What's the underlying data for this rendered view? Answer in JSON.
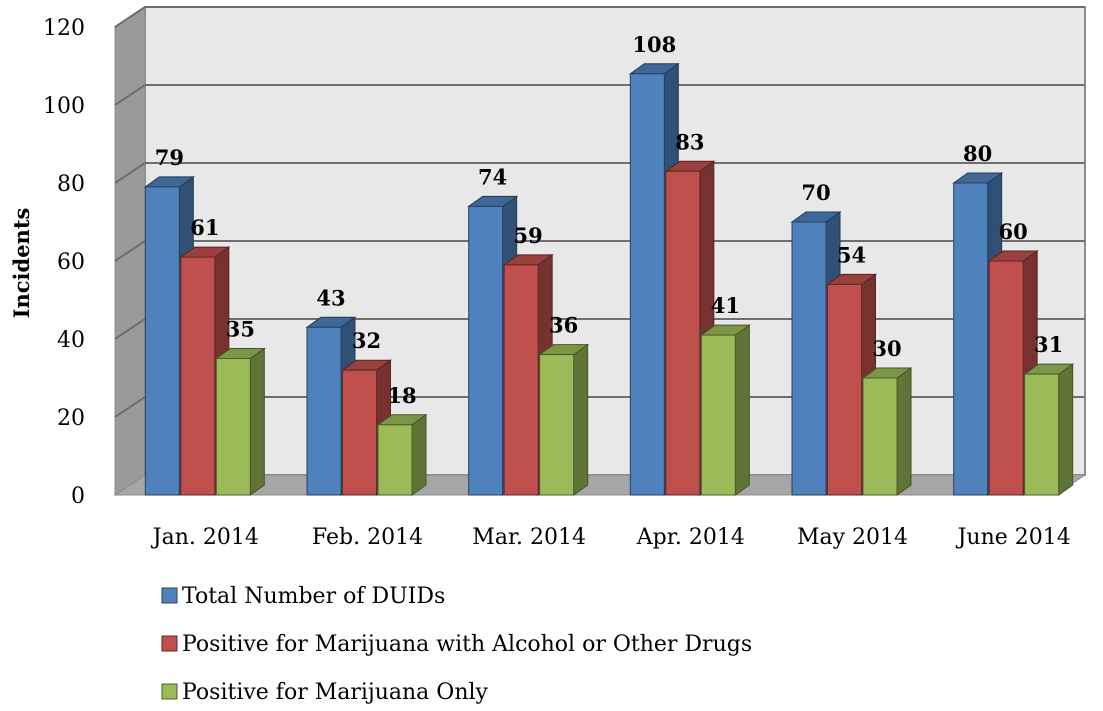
{
  "chart_data": {
    "type": "bar",
    "title": "",
    "xlabel": "",
    "ylabel": "Incidents",
    "ylim": [
      0,
      120
    ],
    "yticks": [
      0,
      20,
      40,
      60,
      80,
      100,
      120
    ],
    "grid": true,
    "legend_position": "bottom-left",
    "three_d": true,
    "categories": [
      "Jan. 2014",
      "Feb. 2014",
      "Mar. 2014",
      "Apr. 2014",
      "May 2014",
      "June 2014"
    ],
    "series": [
      {
        "name": "Total Number of DUIDs",
        "color": "#4F81BD",
        "values": [
          79,
          43,
          74,
          108,
          70,
          80
        ]
      },
      {
        "name": "Positive for Marijuana with Alcohol or Other Drugs",
        "color": "#C0504D",
        "values": [
          61,
          32,
          59,
          83,
          54,
          60
        ]
      },
      {
        "name": "Positive for Marijuana Only",
        "color": "#9BBB59",
        "values": [
          35,
          18,
          36,
          41,
          30,
          31
        ]
      }
    ]
  }
}
